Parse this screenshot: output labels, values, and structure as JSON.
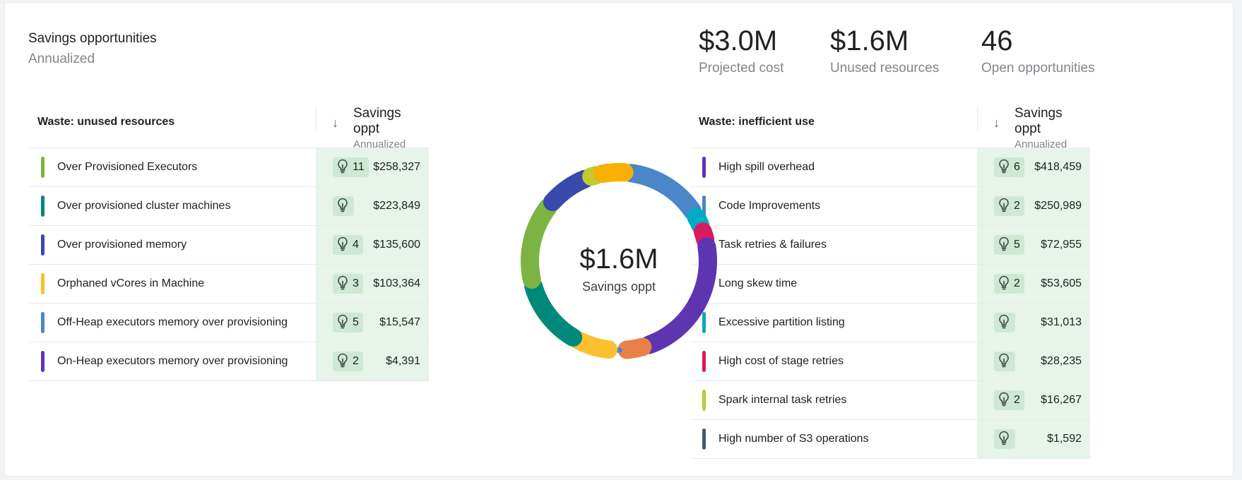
{
  "header": {
    "title": "Savings opportunities",
    "subtitle": "Annualized"
  },
  "kpis": [
    {
      "value": "$3.0M",
      "label": "Projected cost"
    },
    {
      "value": "$1.6M",
      "label": "Unused resources"
    },
    {
      "value": "46",
      "label": "Open opportunities"
    }
  ],
  "left_table": {
    "title": "Waste: unused resources",
    "col_title": "Savings oppt",
    "col_sub": "Annualized",
    "rows": [
      {
        "name": "Over Provisioned Executors",
        "count": "11",
        "amount": "$258,327",
        "color": "#7cb342"
      },
      {
        "name": "Over provisioned cluster machines",
        "count": "",
        "amount": "$223,849",
        "color": "#00897b"
      },
      {
        "name": "Over provisioned memory",
        "count": "4",
        "amount": "$135,600",
        "color": "#3949ab"
      },
      {
        "name": "Orphaned vCores in Machine",
        "count": "3",
        "amount": "$103,364",
        "color": "#fbc02d"
      },
      {
        "name": "Off-Heap executors memory over provisioning",
        "count": "5",
        "amount": "$15,547",
        "color": "#4a86c8"
      },
      {
        "name": "On-Heap executors memory over provisioning",
        "count": "2",
        "amount": "$4,391",
        "color": "#5e35b1"
      }
    ]
  },
  "right_table": {
    "title": "Waste: inefficient use",
    "col_title": "Savings oppt",
    "col_sub": "Annualized",
    "rows": [
      {
        "name": "High spill overhead",
        "count": "6",
        "amount": "$418,459",
        "color": "#5e35b1"
      },
      {
        "name": "Code Improvements",
        "count": "2",
        "amount": "$250,989",
        "color": "#4a86c8"
      },
      {
        "name": "Task retries & failures",
        "count": "5",
        "amount": "$72,955",
        "color": "#f9b000"
      },
      {
        "name": "Long skew time",
        "count": "2",
        "amount": "$53,605",
        "color": "#e8804a"
      },
      {
        "name": "Excessive partition listing",
        "count": "",
        "amount": "$31,013",
        "color": "#00acc1"
      },
      {
        "name": "High cost of stage retries",
        "count": "",
        "amount": "$28,235",
        "color": "#d81b60"
      },
      {
        "name": "Spark internal task retries",
        "count": "2",
        "amount": "$16,267",
        "color": "#c0ca33"
      },
      {
        "name": "High number of S3 operations",
        "count": "",
        "amount": "$1,592",
        "color": "#455a64"
      }
    ]
  },
  "donut": {
    "value": "$1.6M",
    "label": "Savings oppt",
    "segments": [
      {
        "color": "#4a86c8",
        "value": 250989
      },
      {
        "color": "#00acc1",
        "value": 31013
      },
      {
        "color": "#d81b60",
        "value": 28235
      },
      {
        "color": "#5e35b1",
        "value": 418459
      },
      {
        "color": "#e8804a",
        "value": 53605
      },
      {
        "color": "#4a86c8",
        "value": 15547
      },
      {
        "color": "#fbc02d",
        "value": 103364
      },
      {
        "color": "#00897b",
        "value": 223849
      },
      {
        "color": "#7cb342",
        "value": 258327
      },
      {
        "color": "#3949ab",
        "value": 135600
      },
      {
        "color": "#c0ca33",
        "value": 16267
      },
      {
        "color": "#f9b000",
        "value": 72955
      }
    ]
  }
}
